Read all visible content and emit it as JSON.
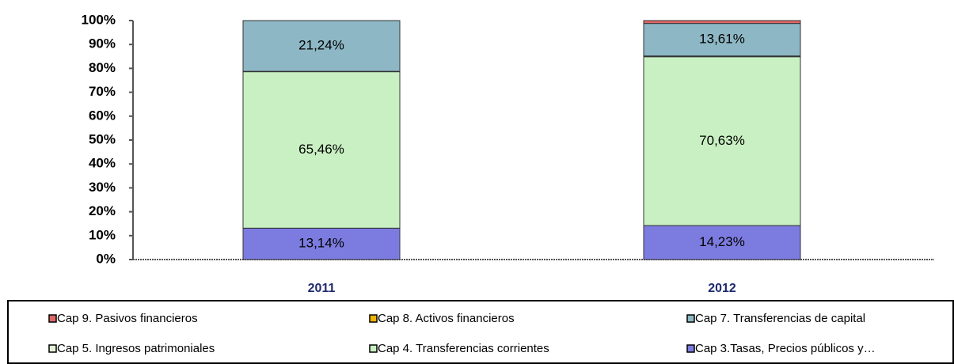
{
  "chart_data": {
    "type": "stacked_bar",
    "categories": [
      "2011",
      "2012"
    ],
    "series": [
      {
        "name": "Cap 9. Pasivos financieros",
        "color": "#e06666",
        "values": [
          0,
          1.2
        ]
      },
      {
        "name": "Cap 8. Activos financieros",
        "color": "#f0b400",
        "values": [
          0,
          0
        ]
      },
      {
        "name": "Cap 7. Transferencias de capital",
        "color": "#8db7c4",
        "values": [
          21.24,
          13.61
        ],
        "value_labels": [
          "21,24%",
          "13,61%"
        ]
      },
      {
        "name": "Cap 5. Ingresos patrimoniales",
        "color": "#e4f2d8",
        "values": [
          0.16,
          0.33
        ]
      },
      {
        "name": "Cap 4. Transferencias corrientes",
        "color": "#c9f0c2",
        "values": [
          65.46,
          70.63
        ],
        "value_labels": [
          "65,46%",
          "70,63%"
        ]
      },
      {
        "name": "Cap 3.Tasas, Precios públicos y…",
        "color": "#7c7ce0",
        "values": [
          13.14,
          14.23
        ],
        "value_labels": [
          "13,14%",
          "14,23%"
        ]
      }
    ],
    "ylim": [
      0,
      100
    ],
    "yticks": [
      {
        "value": 0,
        "label": "0%"
      },
      {
        "value": 10,
        "label": "10%"
      },
      {
        "value": 20,
        "label": "20%"
      },
      {
        "value": 30,
        "label": "30%"
      },
      {
        "value": 40,
        "label": "40%"
      },
      {
        "value": 50,
        "label": "50%"
      },
      {
        "value": 60,
        "label": "60%"
      },
      {
        "value": 70,
        "label": "70%"
      },
      {
        "value": 80,
        "label": "80%"
      },
      {
        "value": 90,
        "label": "90%"
      },
      {
        "value": 100,
        "label": "100%"
      }
    ],
    "legend": "bottom"
  }
}
